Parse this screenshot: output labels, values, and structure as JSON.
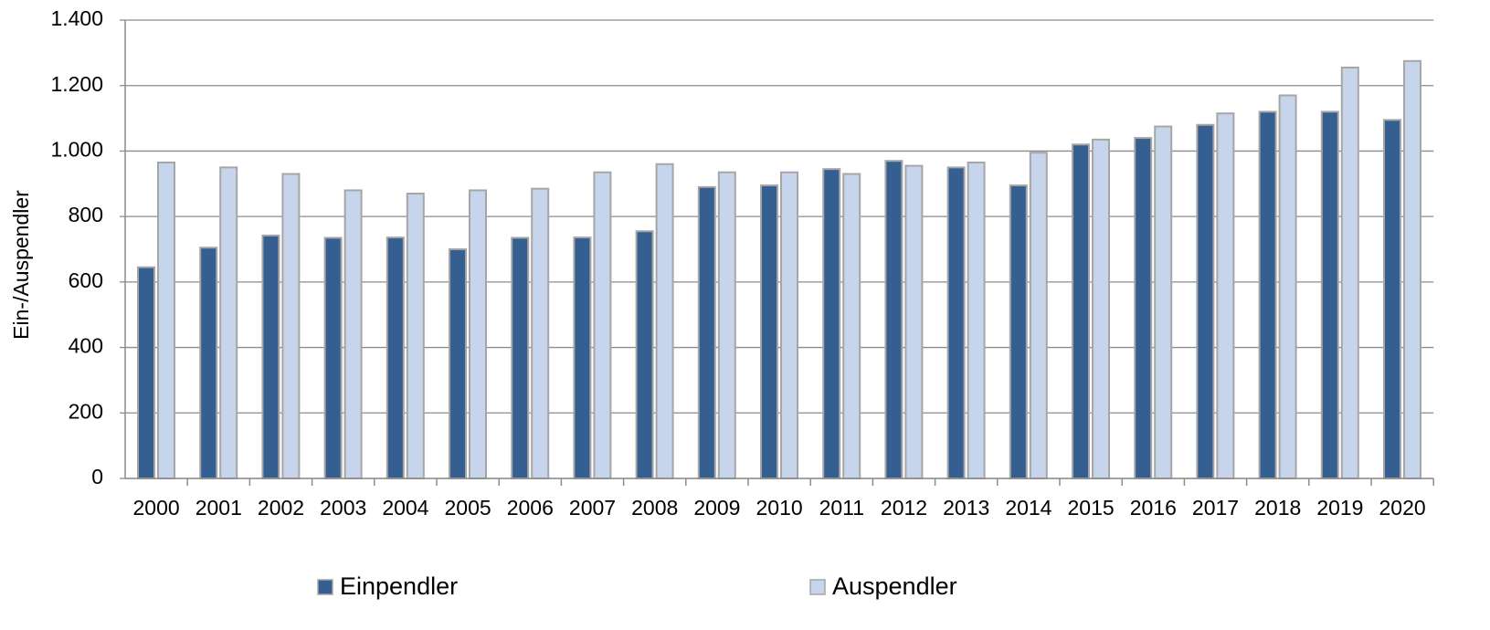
{
  "chart_data": {
    "type": "bar",
    "y_label": "Ein-/Auspendler",
    "categories": [
      "2000",
      "2001",
      "2002",
      "2003",
      "2004",
      "2005",
      "2006",
      "2007",
      "2008",
      "2009",
      "2010",
      "2011",
      "2012",
      "2013",
      "2014",
      "2015",
      "2016",
      "2017",
      "2018",
      "2019",
      "2020"
    ],
    "series": [
      {
        "name": "Einpendler",
        "color": "#365f91",
        "values": [
          645,
          705,
          742,
          735,
          736,
          700,
          735,
          736,
          755,
          890,
          895,
          945,
          970,
          950,
          895,
          1020,
          1040,
          1080,
          1120,
          1120,
          1095
        ]
      },
      {
        "name": "Auspendler",
        "color": "#c6d5ec",
        "values": [
          965,
          950,
          930,
          880,
          870,
          880,
          885,
          935,
          960,
          935,
          935,
          930,
          955,
          965,
          995,
          1035,
          1075,
          1115,
          1170,
          1255,
          1275
        ]
      }
    ],
    "ylim": [
      0,
      1400
    ],
    "yticks": [
      0,
      200,
      400,
      600,
      800,
      {
        "value": 1000,
        "label": "1.000"
      },
      {
        "value": 1200,
        "label": "1.200"
      },
      {
        "value": 1400,
        "label": "1.400"
      }
    ],
    "grid": true,
    "legend": "bottom"
  }
}
